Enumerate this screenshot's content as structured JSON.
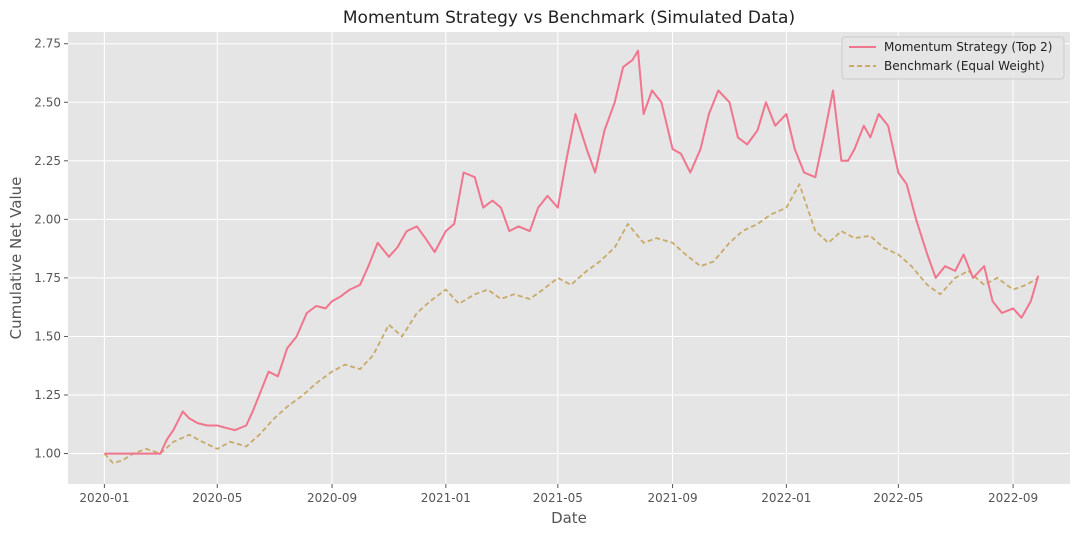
{
  "chart_data": {
    "type": "line",
    "title": "Momentum Strategy vs Benchmark (Simulated Data)",
    "xlabel": "Date",
    "ylabel": "Cumulative Net Value",
    "xlim": [
      "2019-11-23",
      "2022-11-01"
    ],
    "ylim": [
      0.87,
      2.8
    ],
    "x_ticks": [
      "2020-01",
      "2020-05",
      "2020-09",
      "2021-01",
      "2021-05",
      "2021-09",
      "2022-01",
      "2022-05",
      "2022-09"
    ],
    "y_ticks": [
      "1.00",
      "1.25",
      "1.50",
      "1.75",
      "2.00",
      "2.25",
      "2.50",
      "2.75"
    ],
    "grid": true,
    "legend_position": "top-right",
    "colors": {
      "background": "#e5e5e5",
      "grid": "#ffffff",
      "strategy": "#f0758d",
      "benchmark": "#c8aa69"
    },
    "series": [
      {
        "name": "Momentum Strategy (Top 2)",
        "style": "solid",
        "x": [
          "2020-01-01",
          "2020-01-20",
          "2020-02-10",
          "2020-03-01",
          "2020-03-08",
          "2020-03-15",
          "2020-03-25",
          "2020-04-01",
          "2020-04-10",
          "2020-04-20",
          "2020-05-01",
          "2020-05-10",
          "2020-05-20",
          "2020-06-01",
          "2020-06-08",
          "2020-06-15",
          "2020-06-25",
          "2020-07-05",
          "2020-07-15",
          "2020-07-25",
          "2020-08-05",
          "2020-08-15",
          "2020-08-25",
          "2020-09-01",
          "2020-09-10",
          "2020-09-20",
          "2020-10-01",
          "2020-10-10",
          "2020-10-20",
          "2020-11-01",
          "2020-11-10",
          "2020-11-20",
          "2020-12-01",
          "2020-12-10",
          "2020-12-20",
          "2021-01-01",
          "2021-01-10",
          "2021-01-20",
          "2021-02-01",
          "2021-02-10",
          "2021-02-20",
          "2021-03-01",
          "2021-03-10",
          "2021-03-20",
          "2021-04-01",
          "2021-04-10",
          "2021-04-20",
          "2021-05-01",
          "2021-05-10",
          "2021-05-20",
          "2021-06-01",
          "2021-06-10",
          "2021-06-20",
          "2021-07-01",
          "2021-07-10",
          "2021-07-20",
          "2021-07-26",
          "2021-08-01",
          "2021-08-10",
          "2021-08-20",
          "2021-09-01",
          "2021-09-10",
          "2021-09-20",
          "2021-10-01",
          "2021-10-10",
          "2021-10-20",
          "2021-11-01",
          "2021-11-10",
          "2021-11-20",
          "2021-12-01",
          "2021-12-10",
          "2021-12-20",
          "2022-01-01",
          "2022-01-10",
          "2022-01-20",
          "2022-02-01",
          "2022-02-10",
          "2022-02-20",
          "2022-03-01",
          "2022-03-08",
          "2022-03-15",
          "2022-03-25",
          "2022-04-01",
          "2022-04-10",
          "2022-04-20",
          "2022-05-01",
          "2022-05-10",
          "2022-05-20",
          "2022-06-01",
          "2022-06-10",
          "2022-06-20",
          "2022-07-01",
          "2022-07-10",
          "2022-07-20",
          "2022-08-01",
          "2022-08-10",
          "2022-08-20",
          "2022-09-01",
          "2022-09-10",
          "2022-09-20",
          "2022-09-28"
        ],
        "values": [
          1.0,
          1.0,
          1.0,
          1.0,
          1.06,
          1.1,
          1.18,
          1.15,
          1.13,
          1.12,
          1.12,
          1.11,
          1.1,
          1.12,
          1.18,
          1.25,
          1.35,
          1.33,
          1.45,
          1.5,
          1.6,
          1.63,
          1.62,
          1.65,
          1.67,
          1.7,
          1.72,
          1.8,
          1.9,
          1.84,
          1.88,
          1.95,
          1.97,
          1.92,
          1.86,
          1.95,
          1.98,
          2.2,
          2.18,
          2.05,
          2.08,
          2.05,
          1.95,
          1.97,
          1.95,
          2.05,
          2.1,
          2.05,
          2.25,
          2.45,
          2.3,
          2.2,
          2.38,
          2.5,
          2.65,
          2.68,
          2.72,
          2.45,
          2.55,
          2.5,
          2.3,
          2.28,
          2.2,
          2.3,
          2.45,
          2.55,
          2.5,
          2.35,
          2.32,
          2.38,
          2.5,
          2.4,
          2.45,
          2.3,
          2.2,
          2.18,
          2.35,
          2.55,
          2.25,
          2.25,
          2.3,
          2.4,
          2.35,
          2.45,
          2.4,
          2.2,
          2.15,
          2.0,
          1.85,
          1.75,
          1.8,
          1.78,
          1.85,
          1.75,
          1.8,
          1.65,
          1.6,
          1.62,
          1.58,
          1.65,
          1.76
        ]
      },
      {
        "name": "Benchmark (Equal Weight)",
        "style": "dashed",
        "x": [
          "2020-01-01",
          "2020-01-10",
          "2020-01-20",
          "2020-02-01",
          "2020-02-15",
          "2020-03-01",
          "2020-03-15",
          "2020-04-01",
          "2020-04-15",
          "2020-05-01",
          "2020-05-15",
          "2020-06-01",
          "2020-06-15",
          "2020-07-01",
          "2020-07-15",
          "2020-08-01",
          "2020-08-15",
          "2020-09-01",
          "2020-09-15",
          "2020-10-01",
          "2020-10-15",
          "2020-11-01",
          "2020-11-15",
          "2020-12-01",
          "2020-12-15",
          "2021-01-01",
          "2021-01-15",
          "2021-02-01",
          "2021-02-15",
          "2021-03-01",
          "2021-03-15",
          "2021-04-01",
          "2021-04-15",
          "2021-05-01",
          "2021-05-15",
          "2021-06-01",
          "2021-06-15",
          "2021-07-01",
          "2021-07-15",
          "2021-08-01",
          "2021-08-15",
          "2021-09-01",
          "2021-09-15",
          "2021-10-01",
          "2021-10-15",
          "2021-11-01",
          "2021-11-15",
          "2021-12-01",
          "2021-12-15",
          "2022-01-01",
          "2022-01-15",
          "2022-02-01",
          "2022-02-15",
          "2022-03-01",
          "2022-03-15",
          "2022-04-01",
          "2022-04-15",
          "2022-05-01",
          "2022-05-15",
          "2022-06-01",
          "2022-06-15",
          "2022-07-01",
          "2022-07-15",
          "2022-08-01",
          "2022-08-15",
          "2022-09-01",
          "2022-09-15",
          "2022-09-28"
        ],
        "values": [
          1.0,
          0.96,
          0.97,
          1.0,
          1.02,
          1.0,
          1.05,
          1.08,
          1.05,
          1.02,
          1.05,
          1.03,
          1.08,
          1.15,
          1.2,
          1.25,
          1.3,
          1.35,
          1.38,
          1.36,
          1.42,
          1.55,
          1.5,
          1.6,
          1.65,
          1.7,
          1.64,
          1.68,
          1.7,
          1.66,
          1.68,
          1.66,
          1.7,
          1.75,
          1.72,
          1.78,
          1.82,
          1.88,
          1.98,
          1.9,
          1.92,
          1.9,
          1.85,
          1.8,
          1.82,
          1.9,
          1.95,
          1.98,
          2.02,
          2.05,
          2.15,
          1.95,
          1.9,
          1.95,
          1.92,
          1.93,
          1.88,
          1.85,
          1.8,
          1.72,
          1.68,
          1.75,
          1.78,
          1.72,
          1.75,
          1.7,
          1.72,
          1.75
        ]
      }
    ]
  }
}
